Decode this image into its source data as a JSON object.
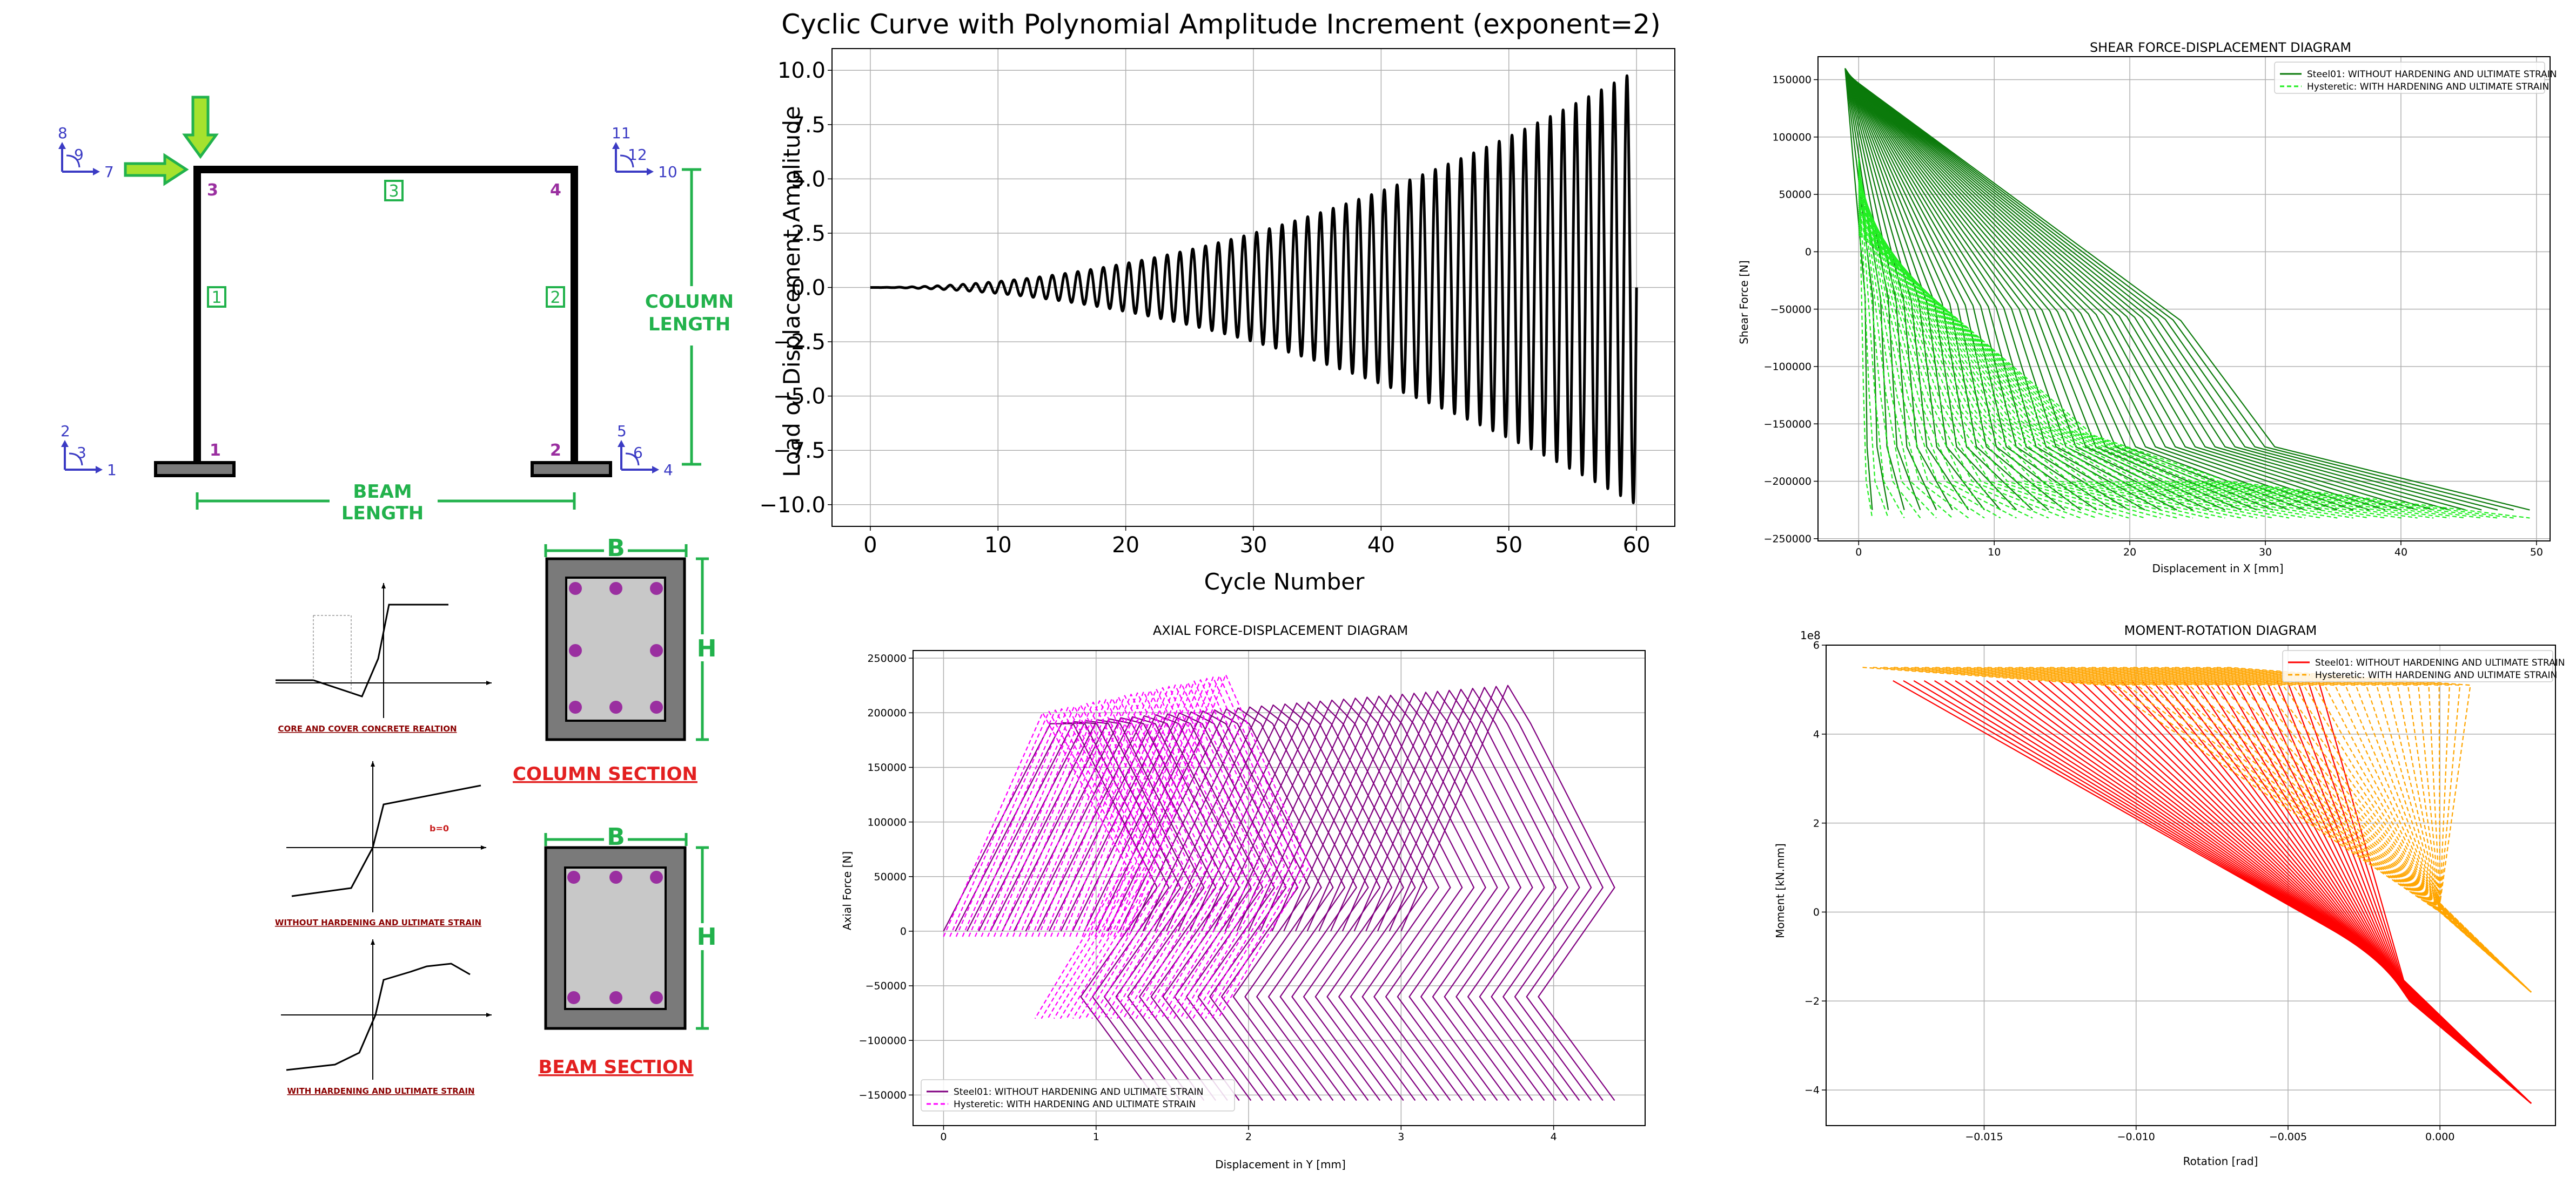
{
  "colors": {
    "purple": "#9a2fa0",
    "green": "#22b24c",
    "blue": "#3b3bc4",
    "red": "#e32020",
    "darkred": "#8b0000",
    "steel_green": "#0b7a0b",
    "hyst_green": "#22ee22",
    "steel_purple": "#800080",
    "hyst_magenta": "#ff00ff",
    "steel_red": "#ff0000",
    "hyst_orange": "#ffa500"
  },
  "frame": {
    "node_labels": [
      "1",
      "2",
      "3",
      "4"
    ],
    "element_labels": [
      "1",
      "2",
      "3"
    ],
    "dof_groups": [
      {
        "up": "2",
        "rot": "3",
        "right": "1"
      },
      {
        "up": "5",
        "rot": "6",
        "right": "4"
      },
      {
        "up": "8",
        "rot": "9",
        "right": "7"
      },
      {
        "up": "11",
        "rot": "12",
        "right": "10"
      }
    ],
    "column_length_label": [
      "COLUMN",
      "LENGTH"
    ],
    "beam_length_label": [
      "BEAM",
      "LENGTH"
    ],
    "load_arrow_icon": "arrow-icon"
  },
  "sections": {
    "column": {
      "b_label": "B",
      "h_label": "H",
      "title": "COLUMN SECTION",
      "rebars_top": 3,
      "rebars_mid": 2,
      "rebars_bottom": 3
    },
    "beam": {
      "b_label": "B",
      "h_label": "H",
      "title": "BEAM SECTION",
      "rebars_top": 3,
      "rebars_bottom": 3
    }
  },
  "materials": {
    "concrete_caption": "CORE AND COVER CONCRETE REALTION",
    "steel01_caption": "WITHOUT HARDENING AND ULTIMATE STRAIN",
    "hysteretic_caption": "WITH HARDENING AND ULTIMATE STRAIN",
    "b0_label": "b=0"
  },
  "charts": {
    "cyclic": {
      "title": "Cyclic Curve with Polynomial Amplitude Increment (exponent=2)",
      "xlabel": "Cycle Number",
      "ylabel": "Load or Displacement Amplitude"
    },
    "shear": {
      "title": "SHEAR FORCE-DISPLACEMENT DIAGRAM",
      "xlabel": "Displacement  in X [mm]",
      "ylabel": "Shear Force [N]",
      "legend": [
        "Steel01: WITHOUT HARDENING AND ULTIMATE STRAIN",
        "Hysteretic: WITH HARDENING AND ULTIMATE STRAIN"
      ]
    },
    "axial": {
      "title": "AXIAL FORCE-DISPLACEMENT DIAGRAM",
      "xlabel": "Displacement in Y [mm]",
      "ylabel": "Axial Force [N]",
      "legend": [
        "Steel01: WITHOUT HARDENING AND ULTIMATE STRAIN",
        "Hysteretic: WITH HARDENING AND ULTIMATE STRAIN"
      ]
    },
    "moment": {
      "title": "MOMENT-ROTATION DIAGRAM",
      "xlabel": "Rotation [rad]",
      "ylabel": "Moment [kN.mm]",
      "offset_text": "1e8",
      "legend": [
        "Steel01: WITHOUT HARDENING AND ULTIMATE STRAIN",
        "Hysteretic: WITH HARDENING AND ULTIMATE STRAIN"
      ]
    }
  },
  "chart_data": [
    {
      "type": "line",
      "title": "Cyclic Curve with Polynomial Amplitude Increment (exponent=2)",
      "xlabel": "Cycle Number",
      "ylabel": "Load or Displacement Amplitude",
      "xlim": [
        -3,
        63
      ],
      "ylim": [
        -11,
        11
      ],
      "xticks": [
        "0",
        "10",
        "20",
        "30",
        "40",
        "50",
        "60"
      ],
      "yticks": [
        "−10.0",
        "−7.5",
        "−5.0",
        "−2.5",
        "0.0",
        "2.5",
        "5.0",
        "7.5",
        "10.0"
      ],
      "grid": true,
      "series": [
        {
          "amplitude": "10*(n/60)^2",
          "cycles": 60,
          "color": "#000000"
        }
      ]
    },
    {
      "type": "line",
      "title": "SHEAR FORCE-DISPLACEMENT DIAGRAM",
      "xlabel": "Displacement  in X [mm]",
      "ylabel": "Shear Force [N]",
      "xlim": [
        -3,
        51
      ],
      "ylim": [
        -252000,
        170000
      ],
      "xticks": [
        "0",
        "10",
        "20",
        "30",
        "40",
        "50"
      ],
      "yticks": [
        "−250000",
        "−200000",
        "−150000",
        "−100000",
        "−50000",
        "0",
        "50000",
        "100000",
        "150000"
      ],
      "grid": true,
      "legend_position": "top-right",
      "series": [
        {
          "name": "Steel01: WITHOUT HARDENING AND ULTIMATE STRAIN",
          "color": "#0b7a0b",
          "dash": "solid",
          "x_range": [
            -1,
            49.5
          ],
          "y_range": [
            -225000,
            160000
          ]
        },
        {
          "name": "Hysteretic: WITH HARDENING AND ULTIMATE STRAIN",
          "color": "#22ee22",
          "dash": "dashed",
          "x_range": [
            -1,
            49.5
          ],
          "y_range": [
            -235000,
            85000
          ]
        }
      ]
    },
    {
      "type": "line",
      "title": "AXIAL FORCE-DISPLACEMENT DIAGRAM",
      "xlabel": "Displacement in Y [mm]",
      "ylabel": "Axial Force [N]",
      "xlim": [
        -0.2,
        4.6
      ],
      "ylim": [
        -178000,
        257000
      ],
      "xticks": [
        "0",
        "1",
        "2",
        "3",
        "4"
      ],
      "yticks": [
        "−150000",
        "−100000",
        "−50000",
        "0",
        "50000",
        "100000",
        "150000",
        "200000",
        "250000"
      ],
      "grid": true,
      "legend_position": "bottom-left",
      "series": [
        {
          "name": "Steel01: WITHOUT HARDENING AND ULTIMATE STRAIN",
          "color": "#800080",
          "dash": "solid",
          "x_range": [
            0,
            4.45
          ],
          "y_range": [
            -158000,
            228000
          ]
        },
        {
          "name": "Hysteretic: WITH HARDENING AND ULTIMATE STRAIN",
          "color": "#ff00ff",
          "dash": "dashed",
          "x_range": [
            0,
            2.4
          ],
          "y_range": [
            -80000,
            235000
          ]
        }
      ]
    },
    {
      "type": "line",
      "title": "MOMENT-ROTATION DIAGRAM",
      "xlabel": "Rotation [rad]",
      "ylabel": "Moment [kN.mm]",
      "xlim": [
        -0.0202,
        0.0038
      ],
      "ylim": [
        -480000000.0,
        600000000.0
      ],
      "xticks": [
        "−0.015",
        "−0.010",
        "−0.005",
        "0.000"
      ],
      "yticks": [
        "−4",
        "−2",
        "0",
        "2",
        "4",
        "6"
      ],
      "y_multiplier": "1e8",
      "grid": true,
      "legend_position": "top-right",
      "series": [
        {
          "name": "Steel01: WITHOUT HARDENING AND ULTIMATE STRAIN",
          "color": "#ff0000",
          "dash": "solid",
          "x_range": [
            -0.018,
            0.003
          ],
          "y_range": [
            -430000000.0,
            520000000.0
          ]
        },
        {
          "name": "Hysteretic: WITH HARDENING AND ULTIMATE STRAIN",
          "color": "#ffa500",
          "dash": "dashed",
          "x_range": [
            -0.019,
            0.0
          ],
          "y_range": [
            -180000000.0,
            550000000.0
          ]
        }
      ]
    }
  ]
}
